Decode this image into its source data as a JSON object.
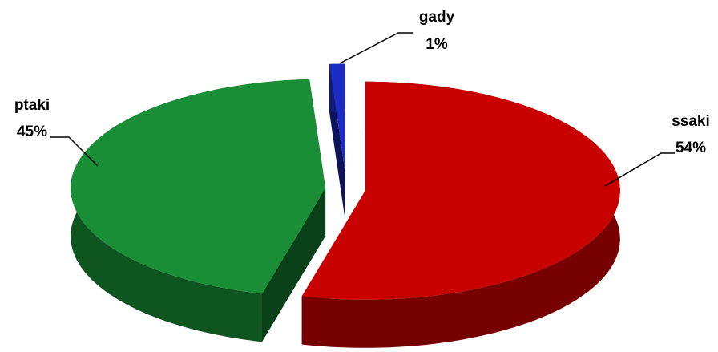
{
  "chart_data": {
    "type": "pie3d",
    "categories": [
      "ssaki",
      "ptaki",
      "gady"
    ],
    "values": [
      54,
      45,
      1
    ],
    "value_labels": [
      "54%",
      "45%",
      "1%"
    ],
    "colors": [
      "#d90000",
      "#1b9a3b",
      "#1f2fd6"
    ]
  }
}
